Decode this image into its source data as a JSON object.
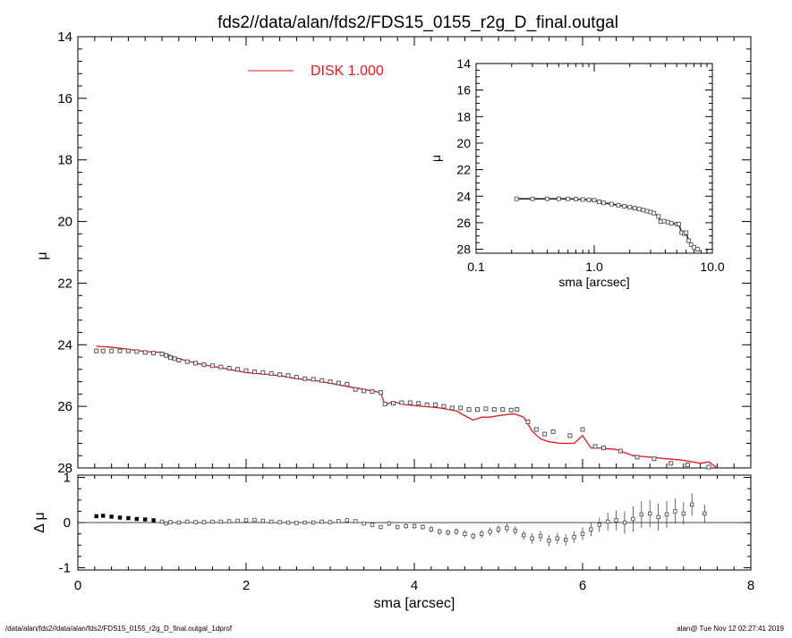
{
  "title": "fds2//data/alan/fds2/FDS15_0155_r2g_D_final.outgal",
  "footer_left": "/data/alan/fds2//data/alan/fds2/FDS15_0155_r2g_D_final.outgal_1dprof",
  "footer_right": "alan@  Tue Nov 12 02:27:41 2019",
  "colors": {
    "model": "#e8141c",
    "data": "#555555",
    "axis": "#000000"
  },
  "chart_data": [
    {
      "id": "main",
      "type": "scatter",
      "ylabel": "μ",
      "xlim": [
        0,
        8
      ],
      "ylim": [
        28,
        14
      ],
      "yticks": [
        14,
        16,
        18,
        20,
        22,
        24,
        26,
        28
      ],
      "legend": {
        "label": "DISK  1.000",
        "placement": "top-center"
      },
      "series": [
        {
          "name": "data",
          "style": "square-markers",
          "x": [
            0.22,
            0.3,
            0.4,
            0.5,
            0.6,
            0.7,
            0.8,
            0.9,
            1.0,
            1.05,
            1.1,
            1.15,
            1.2,
            1.3,
            1.4,
            1.5,
            1.6,
            1.7,
            1.8,
            1.9,
            2.0,
            2.1,
            2.2,
            2.3,
            2.4,
            2.5,
            2.6,
            2.7,
            2.8,
            2.9,
            3.0,
            3.1,
            3.2,
            3.3,
            3.4,
            3.5,
            3.6,
            3.65,
            3.75,
            3.85,
            3.95,
            4.05,
            4.15,
            4.25,
            4.35,
            4.45,
            4.55,
            4.65,
            4.75,
            4.85,
            4.95,
            5.05,
            5.15,
            5.22,
            5.35,
            5.45,
            5.55,
            5.65,
            5.85,
            6.0,
            6.15,
            6.25,
            6.45,
            6.65,
            6.85,
            7.05,
            7.25,
            7.5
          ],
          "y": [
            24.2,
            24.2,
            24.2,
            24.2,
            24.2,
            24.22,
            24.25,
            24.27,
            24.3,
            24.35,
            24.42,
            24.45,
            24.5,
            24.55,
            24.6,
            24.65,
            24.68,
            24.72,
            24.76,
            24.8,
            24.84,
            24.88,
            24.9,
            24.93,
            24.97,
            25.0,
            25.05,
            25.1,
            25.12,
            25.16,
            25.2,
            25.24,
            25.28,
            25.45,
            25.5,
            25.52,
            25.55,
            25.92,
            25.9,
            25.88,
            25.88,
            25.9,
            25.95,
            25.95,
            26.0,
            26.05,
            26.05,
            26.1,
            26.1,
            26.08,
            26.1,
            26.1,
            26.12,
            26.1,
            26.5,
            26.75,
            26.9,
            26.82,
            26.95,
            26.75,
            27.3,
            27.35,
            27.45,
            27.65,
            27.7,
            27.85,
            27.9,
            27.97
          ]
        },
        {
          "name": "DISK  1.000",
          "style": "line",
          "x": [
            0.22,
            0.4,
            0.6,
            0.8,
            1.0,
            1.1,
            1.2,
            1.4,
            1.6,
            1.8,
            2.0,
            2.2,
            2.4,
            2.6,
            2.8,
            3.0,
            3.2,
            3.4,
            3.6,
            3.65,
            3.75,
            3.9,
            4.1,
            4.3,
            4.5,
            4.6,
            4.7,
            4.8,
            4.9,
            5.0,
            5.15,
            5.2,
            5.3,
            5.4,
            5.5,
            5.6,
            5.75,
            5.9,
            6.0,
            6.1,
            6.2,
            6.4,
            6.6,
            6.8,
            7.0,
            7.2,
            7.4,
            7.5,
            7.6
          ],
          "y": [
            24.05,
            24.08,
            24.15,
            24.22,
            24.25,
            24.35,
            24.45,
            24.6,
            24.7,
            24.8,
            24.9,
            24.95,
            25.0,
            25.1,
            25.15,
            25.25,
            25.35,
            25.45,
            25.55,
            25.95,
            25.85,
            25.95,
            26.0,
            26.05,
            26.15,
            26.3,
            26.45,
            26.35,
            26.35,
            26.3,
            26.25,
            26.25,
            26.35,
            26.8,
            27.05,
            27.15,
            27.2,
            27.2,
            26.95,
            27.35,
            27.35,
            27.4,
            27.6,
            27.65,
            27.7,
            27.75,
            27.85,
            27.8,
            28.05
          ]
        }
      ]
    },
    {
      "id": "inset",
      "type": "scatter",
      "xlabel": "sma [arcsec]",
      "ylabel": "μ",
      "xscale": "log",
      "xlim": [
        0.1,
        10.0
      ],
      "ylim": [
        28.3,
        14
      ],
      "xticks": [
        0.1,
        1.0,
        10.0
      ],
      "xticklabels": [
        "0.1",
        "1.0",
        "10.0"
      ],
      "yticks": [
        14,
        16,
        18,
        20,
        22,
        24,
        26,
        28
      ],
      "series": [
        {
          "name": "data",
          "style": "square-markers",
          "x": [
            0.22,
            0.3,
            0.4,
            0.5,
            0.6,
            0.7,
            0.8,
            0.9,
            1.0,
            1.1,
            1.2,
            1.4,
            1.6,
            1.8,
            2.0,
            2.2,
            2.4,
            2.6,
            2.8,
            3.0,
            3.2,
            3.5,
            3.65,
            3.9,
            4.2,
            4.5,
            5.0,
            5.2,
            5.5,
            5.8,
            6.0,
            6.3,
            6.6,
            7.0,
            7.5
          ],
          "y": [
            24.2,
            24.2,
            24.2,
            24.2,
            24.2,
            24.22,
            24.25,
            24.27,
            24.3,
            24.42,
            24.5,
            24.6,
            24.68,
            24.76,
            24.84,
            24.9,
            24.97,
            25.05,
            25.12,
            25.2,
            25.28,
            25.52,
            25.92,
            25.88,
            25.95,
            26.05,
            26.1,
            26.1,
            26.75,
            26.82,
            26.75,
            27.35,
            27.65,
            27.85,
            28.0
          ]
        }
      ]
    },
    {
      "id": "residuals",
      "type": "scatter",
      "xlabel": "sma [arcsec]",
      "ylabel": "Δ μ",
      "xlim": [
        0,
        8
      ],
      "ylim": [
        -1.05,
        1.05
      ],
      "xticks": [
        0,
        2,
        4,
        6,
        8
      ],
      "yticks": [
        -1,
        0,
        1
      ],
      "zero_line": true,
      "series": [
        {
          "name": "residual",
          "style": "square-markers-with-errorbars",
          "x": [
            0.22,
            0.3,
            0.4,
            0.5,
            0.6,
            0.7,
            0.8,
            0.9,
            1.0,
            1.05,
            1.1,
            1.2,
            1.3,
            1.4,
            1.5,
            1.6,
            1.7,
            1.8,
            1.9,
            2.0,
            2.1,
            2.2,
            2.3,
            2.4,
            2.5,
            2.6,
            2.7,
            2.8,
            2.9,
            3.0,
            3.1,
            3.2,
            3.3,
            3.4,
            3.5,
            3.6,
            3.7,
            3.8,
            3.9,
            4.0,
            4.1,
            4.2,
            4.3,
            4.4,
            4.5,
            4.6,
            4.7,
            4.8,
            4.9,
            5.0,
            5.1,
            5.2,
            5.3,
            5.4,
            5.5,
            5.6,
            5.7,
            5.8,
            5.9,
            6.0,
            6.1,
            6.2,
            6.3,
            6.4,
            6.5,
            6.6,
            6.7,
            6.8,
            6.9,
            7.0,
            7.1,
            7.2,
            7.3,
            7.45
          ],
          "y": [
            0.14,
            0.15,
            0.13,
            0.11,
            0.1,
            0.08,
            0.07,
            0.05,
            0.02,
            -0.02,
            0.01,
            0.0,
            0.02,
            0.01,
            0.01,
            0.02,
            0.02,
            0.03,
            0.04,
            0.05,
            0.06,
            0.04,
            0.02,
            0.01,
            0.0,
            -0.01,
            0.0,
            0.0,
            0.02,
            0.01,
            0.03,
            0.05,
            0.03,
            -0.02,
            -0.05,
            -0.1,
            -0.02,
            -0.1,
            -0.08,
            -0.08,
            -0.1,
            -0.15,
            -0.2,
            -0.22,
            -0.2,
            -0.25,
            -0.3,
            -0.25,
            -0.2,
            -0.15,
            -0.12,
            -0.18,
            -0.28,
            -0.35,
            -0.3,
            -0.4,
            -0.35,
            -0.38,
            -0.32,
            -0.25,
            -0.15,
            -0.05,
            0.02,
            0.05,
            0.0,
            0.08,
            0.18,
            0.2,
            0.12,
            0.18,
            0.25,
            0.2,
            0.4,
            0.2
          ],
          "err": [
            0.01,
            0.01,
            0.01,
            0.01,
            0.01,
            0.01,
            0.01,
            0.01,
            0.01,
            0.01,
            0.01,
            0.01,
            0.01,
            0.01,
            0.01,
            0.01,
            0.01,
            0.01,
            0.01,
            0.01,
            0.02,
            0.02,
            0.02,
            0.02,
            0.02,
            0.02,
            0.02,
            0.02,
            0.02,
            0.03,
            0.03,
            0.03,
            0.03,
            0.04,
            0.05,
            0.05,
            0.06,
            0.05,
            0.06,
            0.06,
            0.06,
            0.07,
            0.07,
            0.07,
            0.08,
            0.08,
            0.08,
            0.09,
            0.09,
            0.09,
            0.1,
            0.1,
            0.1,
            0.12,
            0.12,
            0.12,
            0.13,
            0.13,
            0.13,
            0.14,
            0.15,
            0.16,
            0.2,
            0.22,
            0.25,
            0.28,
            0.3,
            0.3,
            0.3,
            0.3,
            0.28,
            0.25,
            0.25,
            0.2
          ]
        }
      ]
    }
  ]
}
